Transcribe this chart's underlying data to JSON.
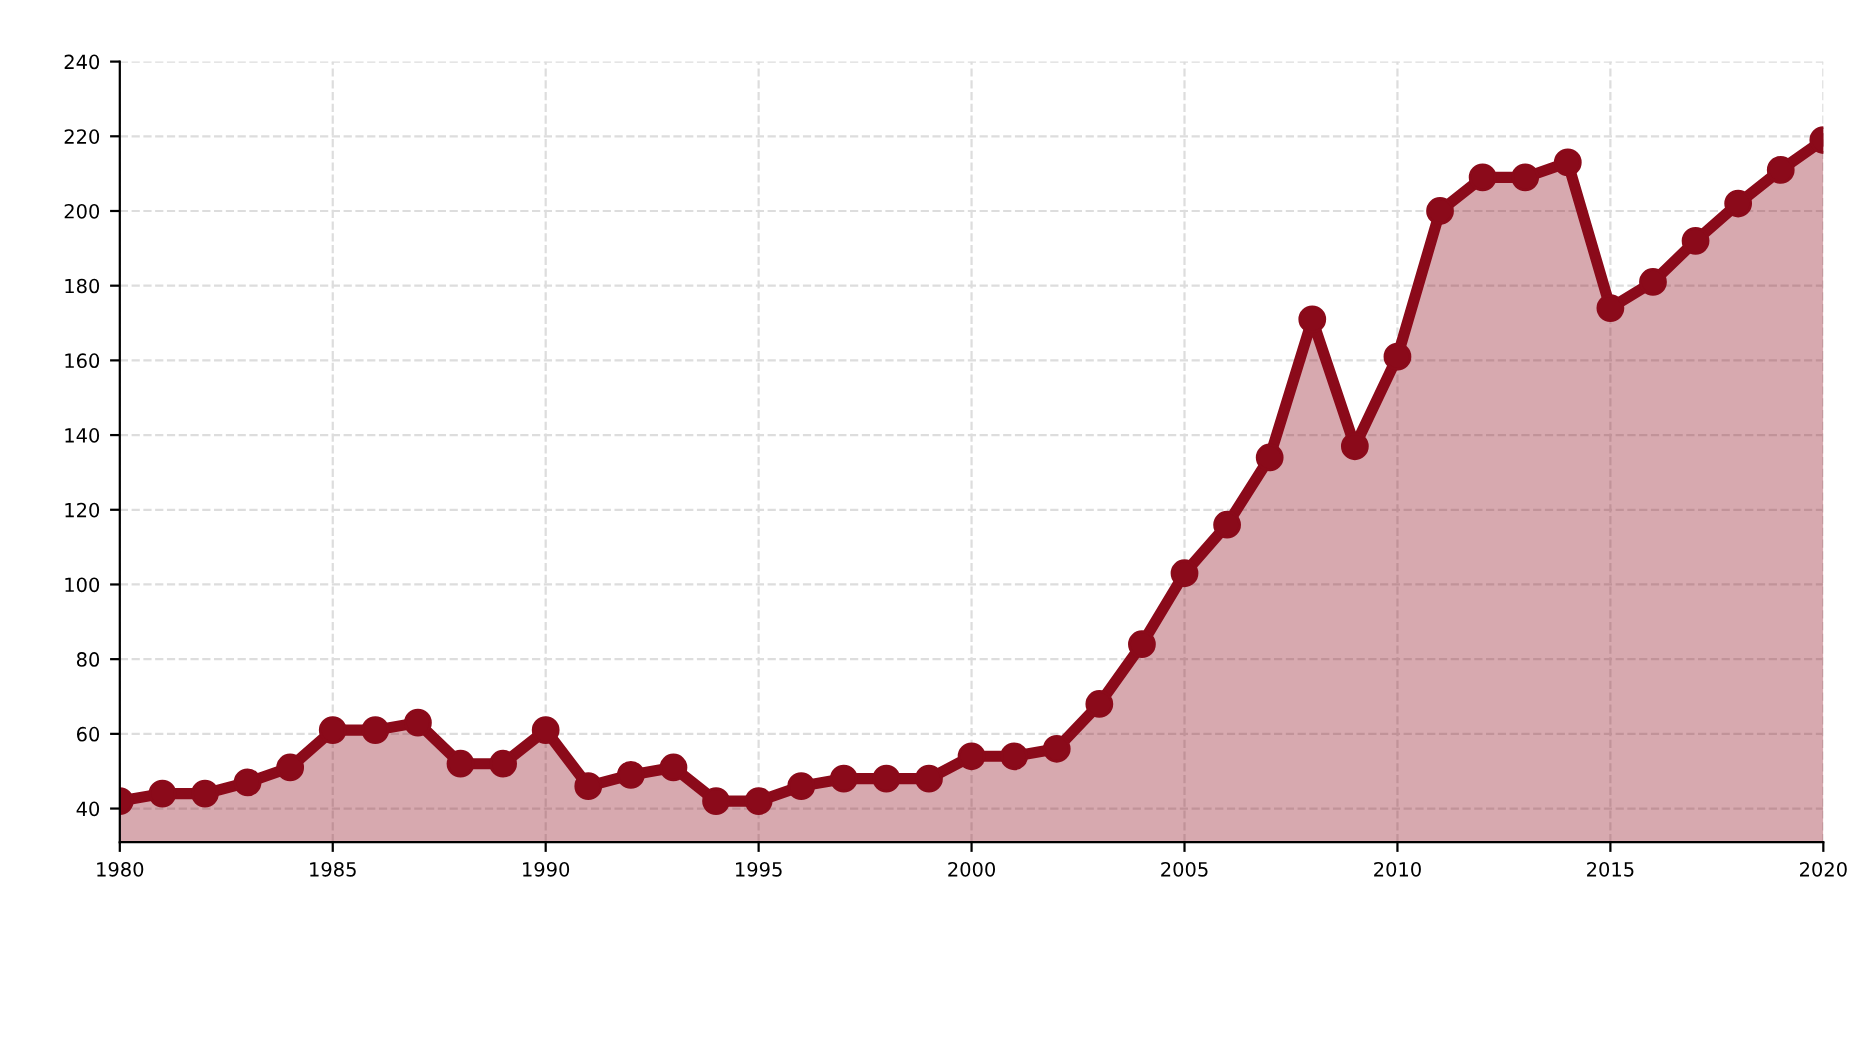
{
  "chart_data": {
    "type": "area",
    "x": [
      1980,
      1981,
      1982,
      1983,
      1984,
      1985,
      1986,
      1987,
      1988,
      1989,
      1990,
      1991,
      1992,
      1993,
      1994,
      1995,
      1996,
      1997,
      1998,
      1999,
      2000,
      2001,
      2002,
      2003,
      2004,
      2005,
      2006,
      2007,
      2008,
      2009,
      2010,
      2011,
      2012,
      2013,
      2014,
      2015,
      2016,
      2017,
      2018,
      2019,
      2020
    ],
    "series": [
      {
        "color": "#8b0a1a",
        "values": [
          42,
          44,
          44,
          47,
          51,
          61,
          61,
          63,
          52,
          52,
          61,
          46,
          49,
          51,
          42,
          42,
          46,
          48,
          48,
          48,
          54,
          54,
          56,
          68,
          84,
          103,
          116,
          134,
          171,
          137,
          161,
          200,
          209,
          209,
          213,
          174,
          181,
          192,
          202,
          211,
          219
        ]
      }
    ],
    "xlim": [
      1980,
      2020
    ],
    "xticks": [
      1980,
      1985,
      1990,
      1995,
      2000,
      2005,
      2010,
      2015,
      2020
    ],
    "ylim": [
      31,
      240
    ],
    "yticks": [
      40,
      60,
      80,
      100,
      120,
      140,
      160,
      180,
      200,
      220,
      240
    ],
    "grid": true,
    "marker": "circle",
    "line_style": "solid"
  }
}
